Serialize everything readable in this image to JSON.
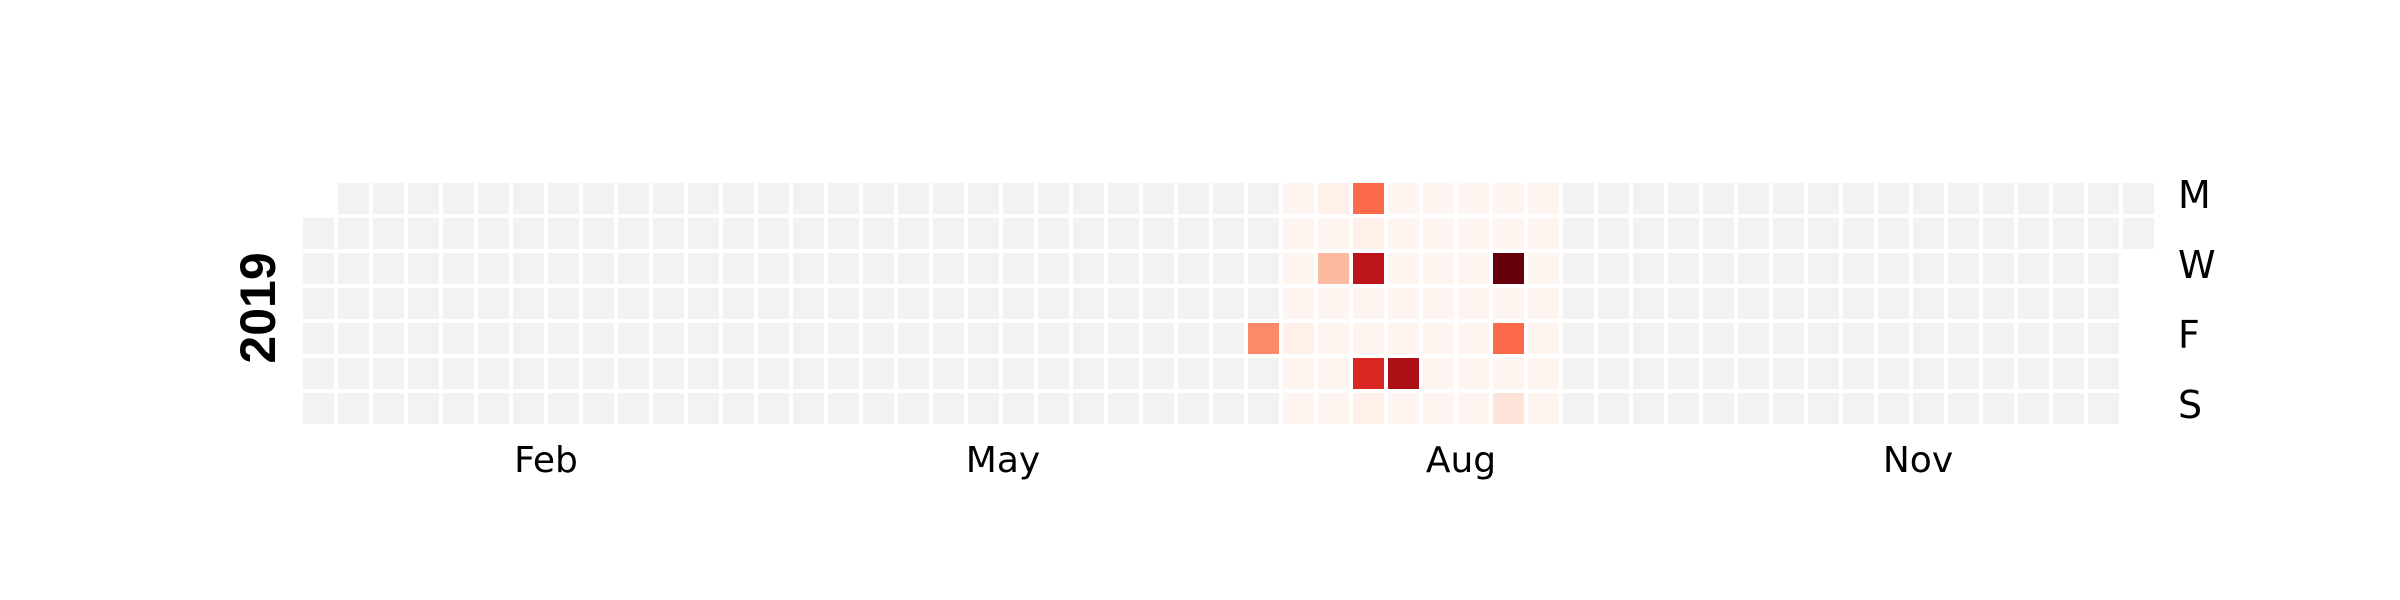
{
  "chart_data": {
    "type": "heatmap",
    "title": "",
    "year": "2019",
    "month_labels": [
      "Feb",
      "May",
      "Aug",
      "Nov"
    ],
    "weekday_labels": [
      "M",
      "W",
      "F",
      "S"
    ],
    "empty_color": "#f2f2f2",
    "colormap": "Reds",
    "color_stops": [
      "#fff5f0",
      "#fee0d2",
      "#fcbba1",
      "#fc9272",
      "#fb6a4a",
      "#ef3b2c",
      "#cb181d",
      "#a50f15",
      "#67000d"
    ],
    "value_range": [
      0,
      10
    ],
    "active_range": [
      "2019-07-15",
      "2019-09-08"
    ],
    "values": [
      {
        "date": "2019-07-12",
        "value": 4
      },
      {
        "date": "2019-07-19",
        "value": 0.3
      },
      {
        "date": "2019-07-22",
        "value": 0.3
      },
      {
        "date": "2019-07-24",
        "value": 2.5
      },
      {
        "date": "2019-07-29",
        "value": 5
      },
      {
        "date": "2019-07-30",
        "value": 0.3
      },
      {
        "date": "2019-07-31",
        "value": 8
      },
      {
        "date": "2019-08-03",
        "value": 7
      },
      {
        "date": "2019-08-04",
        "value": 0.3
      },
      {
        "date": "2019-08-10",
        "value": 8.5
      },
      {
        "date": "2019-08-28",
        "value": 10
      },
      {
        "date": "2019-08-30",
        "value": 5
      },
      {
        "date": "2019-09-01",
        "value": 1
      }
    ]
  }
}
